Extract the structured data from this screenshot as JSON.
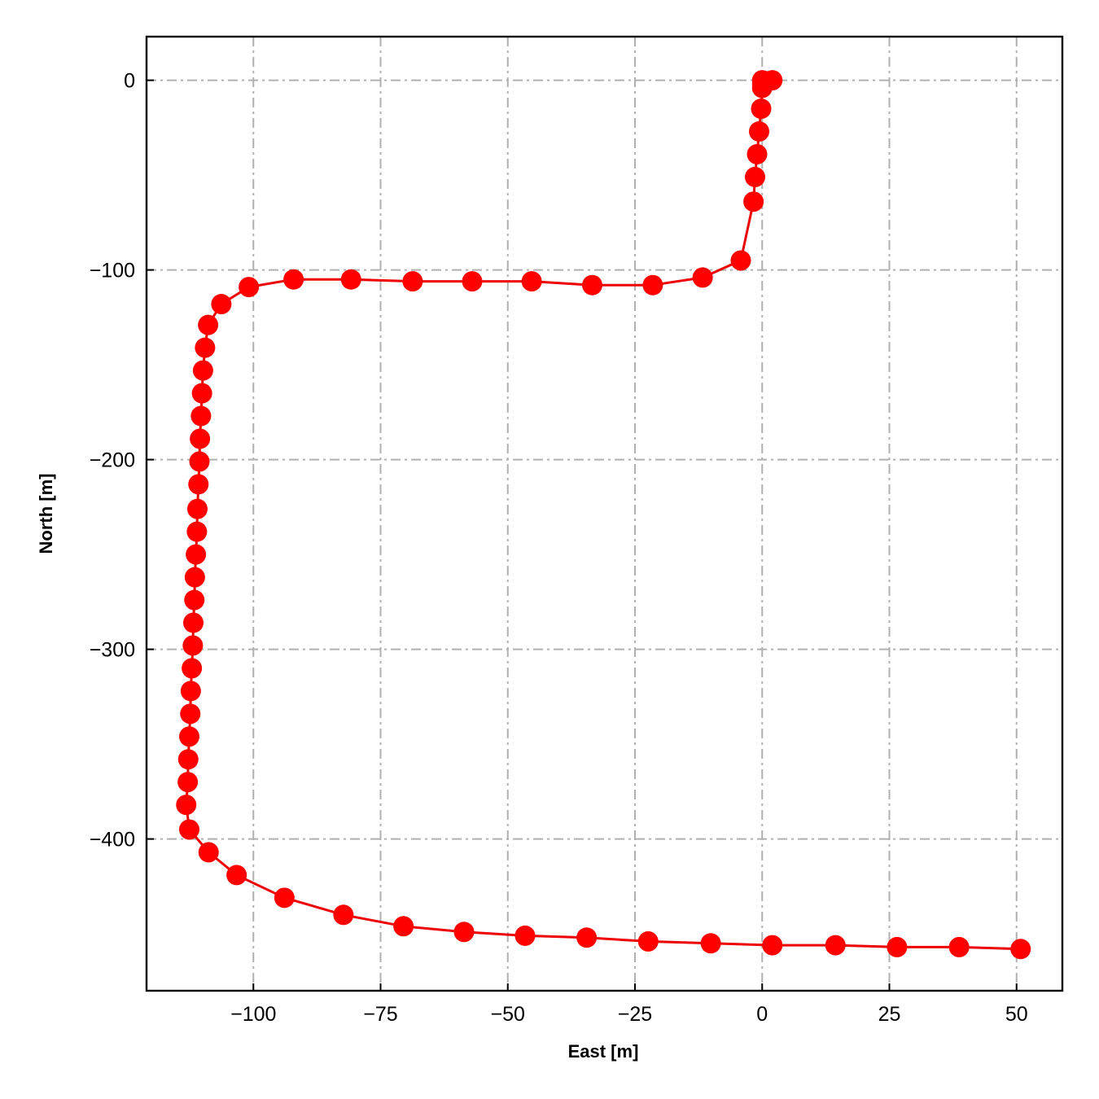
{
  "chart_data": {
    "type": "line",
    "title": "",
    "xlabel": "East [m]",
    "ylabel": "North [m]",
    "xlim": [
      -121,
      59
    ],
    "ylim": [
      -480,
      23
    ],
    "xticks": [
      -100,
      -75,
      -50,
      -25,
      0,
      25,
      50
    ],
    "xtick_labels": [
      "−100",
      "−75",
      "−50",
      "−25",
      "0",
      "25",
      "50"
    ],
    "yticks": [
      0,
      -100,
      -200,
      -300,
      -400
    ],
    "ytick_labels": [
      "0",
      "−100",
      "−200",
      "−300",
      "−400"
    ],
    "grid": true,
    "grid_style": "dash-dot",
    "legend": "none",
    "colors": {
      "line": "#ee0000",
      "marker": "#ff0000",
      "grid": "#b0b0b0"
    },
    "series": [
      {
        "marker": "circle",
        "x": [
          0,
          2,
          0,
          0,
          -0.2,
          -0.6,
          -1.0,
          -1.4,
          -1.7,
          -4.2,
          -11.7,
          -21.5,
          -33.4,
          -45.3,
          -57.0,
          -68.7,
          -80.8,
          -92.1,
          -100.9,
          -106.3,
          -108.9,
          -109.5,
          -109.9,
          -110.1,
          -110.3,
          -110.5,
          -110.6,
          -110.8,
          -111.0,
          -111.1,
          -111.3,
          -111.5,
          -111.6,
          -111.8,
          -111.9,
          -112.1,
          -112.3,
          -112.4,
          -112.6,
          -112.8,
          -112.9,
          -113.2,
          -112.6,
          -108.8,
          -103.3,
          -93.9,
          -82.3,
          -70.5,
          -58.6,
          -46.6,
          -34.5,
          -22.4,
          -10.1,
          2.0,
          14.4,
          26.5,
          38.7,
          50.8
        ],
        "y": [
          0,
          0,
          -2,
          -4,
          -15,
          -27,
          -39,
          -51,
          -64,
          -95,
          -104,
          -108,
          -108,
          -106,
          -106,
          -106,
          -105,
          -105,
          -109,
          -118,
          -129,
          -141,
          -153,
          -165,
          -177,
          -189,
          -201,
          -213,
          -226,
          -238,
          -250,
          -262,
          -274,
          -286,
          -298,
          -310,
          -322,
          -334,
          -346,
          -358,
          -370,
          -382,
          -395,
          -407,
          -419,
          -431,
          -440,
          -446,
          -449,
          -451,
          -452,
          -454,
          -455,
          -456,
          -456,
          -457,
          -457,
          -458
        ]
      }
    ]
  }
}
